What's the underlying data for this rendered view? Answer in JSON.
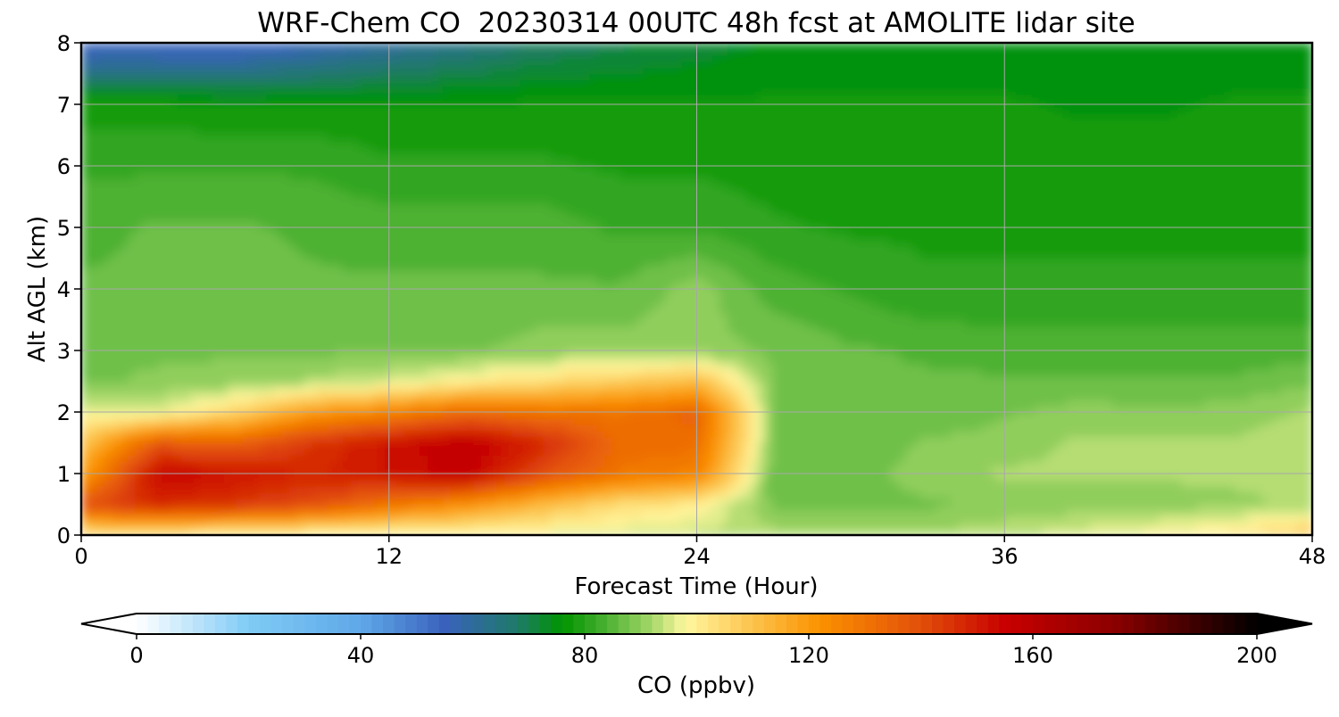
{
  "chart_data": {
    "type": "heatmap",
    "title": "WRF-Chem CO  20230314 00UTC 48h fcst at AMOLITE lidar site",
    "xlabel": "Forecast Time (Hour)",
    "ylabel": "Alt AGL (km)",
    "xlim": [
      0,
      48
    ],
    "ylim": [
      0,
      8
    ],
    "xticks": [
      0,
      12,
      24,
      36,
      48
    ],
    "yticks": [
      0,
      1,
      2,
      3,
      4,
      5,
      6,
      7,
      8
    ],
    "grid": true,
    "x": [
      0,
      3,
      6,
      9,
      12,
      15,
      18,
      21,
      24,
      27,
      30,
      33,
      36,
      39,
      42,
      45,
      48
    ],
    "y": [
      0,
      0.5,
      1,
      1.5,
      2,
      2.5,
      3,
      4,
      5,
      6,
      7,
      8
    ],
    "z": [
      [
        100,
        100,
        97,
        96,
        96,
        96,
        96,
        95,
        94,
        93,
        92,
        92,
        94,
        96,
        99,
        102,
        110
      ],
      [
        140,
        148,
        145,
        140,
        130,
        122,
        112,
        104,
        100,
        88,
        88,
        88,
        89,
        90,
        90,
        91,
        92
      ],
      [
        118,
        155,
        152,
        148,
        152,
        157,
        140,
        130,
        126,
        86,
        87,
        90,
        92,
        92,
        92,
        92,
        92
      ],
      [
        110,
        138,
        135,
        145,
        152,
        158,
        148,
        132,
        132,
        88,
        86,
        89,
        90,
        92,
        92,
        92,
        93
      ],
      [
        96,
        96,
        106,
        120,
        126,
        133,
        130,
        130,
        135,
        88,
        86,
        86,
        88,
        90,
        89,
        90,
        92
      ],
      [
        88,
        89,
        90,
        92,
        95,
        100,
        104,
        108,
        112,
        88,
        86,
        86,
        86,
        86,
        86,
        86,
        88
      ],
      [
        88,
        88,
        88,
        88,
        88,
        88,
        90,
        90,
        90,
        88,
        86,
        85,
        84,
        84,
        84,
        84,
        84
      ],
      [
        86,
        87,
        86,
        86,
        86,
        86,
        86,
        86,
        90,
        84,
        82,
        80,
        80,
        80,
        80,
        80,
        80
      ],
      [
        84,
        86,
        86,
        85,
        84,
        84,
        84,
        82,
        82,
        80,
        79,
        79,
        79,
        79,
        79,
        79,
        79
      ],
      [
        82,
        82,
        82,
        82,
        80,
        80,
        80,
        79,
        79,
        78,
        78,
        78,
        78,
        78,
        78,
        78,
        78
      ],
      [
        78,
        78,
        77,
        77,
        77,
        77,
        77,
        77,
        77,
        77,
        77,
        77,
        77,
        76,
        76,
        77,
        77
      ],
      [
        52,
        52,
        52,
        56,
        60,
        64,
        68,
        70,
        72,
        74,
        74,
        74,
        74,
        74,
        74,
        74,
        74
      ]
    ],
    "colorbar": {
      "label": "CO  (ppbv)",
      "min": 0,
      "max": 200,
      "ticks": [
        0,
        40,
        80,
        120,
        160,
        200
      ],
      "extend": "both",
      "stops": [
        {
          "v": 0,
          "c": "#ffffff"
        },
        {
          "v": 20,
          "c": "#7fcbf5"
        },
        {
          "v": 40,
          "c": "#5fa8e8"
        },
        {
          "v": 55,
          "c": "#3a62bc"
        },
        {
          "v": 68,
          "c": "#1e7a68"
        },
        {
          "v": 76,
          "c": "#009400"
        },
        {
          "v": 84,
          "c": "#4db133"
        },
        {
          "v": 92,
          "c": "#a6d86a"
        },
        {
          "v": 98,
          "c": "#fff7a0"
        },
        {
          "v": 110,
          "c": "#fcc34c"
        },
        {
          "v": 122,
          "c": "#fb9200"
        },
        {
          "v": 140,
          "c": "#e24f0a"
        },
        {
          "v": 155,
          "c": "#c80000"
        },
        {
          "v": 175,
          "c": "#8a0000"
        },
        {
          "v": 200,
          "c": "#000000"
        }
      ]
    }
  }
}
